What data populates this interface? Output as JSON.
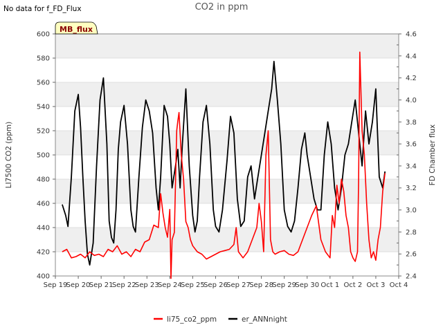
{
  "header": {
    "no_data_note": "No data for f_FD_Flux",
    "title": "CO2 in ppm"
  },
  "badge": {
    "label": "MB_flux",
    "bg": "#ffffc0",
    "text_color": "#8b0000"
  },
  "colors": {
    "band": "#efefef",
    "grid": "#d8d8d8",
    "li75": "#ff0000",
    "ann": "#000000"
  },
  "chart_data": {
    "type": "line",
    "title": "CO2 in ppm",
    "xlabel": "",
    "ylabel": "LI7500 CO2 (ppm)",
    "y2label": "FD Chamber flux",
    "x_start": "Sep 19",
    "x_end": "Oct 4",
    "x_ticks": [
      "Sep 19",
      "Sep 20",
      "Sep 21",
      "Sep 22",
      "Sep 23",
      "Sep 24",
      "Sep 25",
      "Sep 26",
      "Sep 27",
      "Sep 28",
      "Sep 29",
      "Sep 30",
      "Oct 1",
      "Oct 2",
      "Oct 3",
      "Oct 4"
    ],
    "ylim": [
      400,
      600
    ],
    "y_ticks": [
      400,
      420,
      440,
      460,
      480,
      500,
      520,
      540,
      560,
      580,
      600
    ],
    "y2lim": [
      2.4,
      4.6
    ],
    "y2_ticks": [
      "2.4",
      "2.6",
      "2.8",
      "3.0",
      "3.2",
      "3.4",
      "3.6",
      "3.8",
      "4.0",
      "4.2",
      "4.4",
      "4.6"
    ],
    "grid": true,
    "legend_position": "bottom",
    "series": [
      {
        "name": "li75_co2_ppm",
        "color": "#ff0000",
        "axis": "left",
        "x": [
          0.3,
          0.5,
          0.7,
          0.9,
          1.1,
          1.3,
          1.5,
          1.7,
          1.9,
          2.1,
          2.3,
          2.5,
          2.7,
          2.9,
          3.1,
          3.3,
          3.5,
          3.7,
          3.9,
          4.1,
          4.3,
          4.5,
          4.6,
          4.7,
          4.8,
          4.9,
          5.0,
          5.05,
          5.1,
          5.2,
          5.3,
          5.35,
          5.4,
          5.5,
          5.6,
          5.7,
          5.8,
          5.9,
          6.0,
          6.2,
          6.4,
          6.6,
          6.8,
          7.0,
          7.2,
          7.4,
          7.6,
          7.8,
          7.9,
          8.0,
          8.2,
          8.4,
          8.6,
          8.8,
          8.9,
          9.0,
          9.1,
          9.2,
          9.3,
          9.4,
          9.5,
          9.6,
          9.8,
          10.0,
          10.2,
          10.4,
          10.6,
          10.8,
          11.0,
          11.2,
          11.4,
          11.6,
          11.8,
          12.0,
          12.1,
          12.2,
          12.3,
          12.4,
          12.5,
          12.6,
          12.7,
          12.8,
          12.9,
          13.0,
          13.1,
          13.2,
          13.25,
          13.3,
          13.4,
          13.5,
          13.6,
          13.7,
          13.8,
          13.9,
          14.0,
          14.1,
          14.2,
          14.3,
          14.4
        ],
        "y": [
          420,
          422,
          415,
          416,
          418,
          415,
          420,
          417,
          418,
          416,
          422,
          420,
          425,
          418,
          420,
          416,
          422,
          420,
          428,
          430,
          442,
          440,
          468,
          452,
          440,
          432,
          455,
          398,
          430,
          436,
          520,
          528,
          535,
          500,
          480,
          445,
          440,
          430,
          425,
          420,
          418,
          414,
          416,
          418,
          420,
          421,
          422,
          426,
          440,
          420,
          415,
          420,
          430,
          440,
          460,
          445,
          420,
          500,
          520,
          430,
          420,
          418,
          420,
          421,
          418,
          417,
          420,
          430,
          440,
          450,
          458,
          430,
          420,
          415,
          450,
          440,
          475,
          460,
          480,
          470,
          450,
          440,
          420,
          415,
          412,
          420,
          480,
          585,
          520,
          500,
          460,
          430,
          415,
          420,
          413,
          430,
          440,
          470,
          485
        ]
      },
      {
        "name": "er_ANNnight",
        "color": "#000000",
        "axis": "right",
        "x": [
          0.3,
          0.45,
          0.55,
          0.7,
          0.85,
          1.0,
          1.1,
          1.2,
          1.3,
          1.4,
          1.5,
          1.65,
          1.8,
          1.95,
          2.1,
          2.25,
          2.35,
          2.45,
          2.55,
          2.65,
          2.75,
          2.85,
          3.0,
          3.15,
          3.3,
          3.4,
          3.5,
          3.65,
          3.8,
          3.95,
          4.1,
          4.25,
          4.4,
          4.5,
          4.6,
          4.75,
          4.9,
          5.0,
          5.1,
          5.25,
          5.35,
          5.45,
          5.55,
          5.7,
          5.85,
          6.0,
          6.1,
          6.2,
          6.3,
          6.45,
          6.6,
          6.75,
          6.9,
          7.0,
          7.15,
          7.3,
          7.5,
          7.65,
          7.8,
          7.95,
          8.1,
          8.25,
          8.4,
          8.55,
          8.7,
          8.85,
          9.0,
          9.15,
          9.3,
          9.45,
          9.55,
          9.7,
          9.85,
          10.0,
          10.15,
          10.3,
          10.45,
          10.6,
          10.75,
          10.9,
          11.0,
          11.15,
          11.3,
          11.45,
          11.6,
          11.75,
          11.9,
          12.05,
          12.2,
          12.35,
          12.5,
          12.65,
          12.8,
          12.95,
          13.1,
          13.25,
          13.4,
          13.55,
          13.7,
          13.85,
          14.0,
          14.15,
          14.3,
          14.4
        ],
        "y": [
          3.05,
          2.95,
          2.85,
          3.3,
          3.9,
          4.05,
          3.75,
          3.3,
          2.9,
          2.6,
          2.5,
          2.7,
          3.4,
          4.0,
          4.2,
          3.6,
          2.9,
          2.75,
          2.7,
          3.0,
          3.55,
          3.8,
          3.95,
          3.6,
          3.0,
          2.85,
          2.8,
          3.3,
          3.75,
          4.0,
          3.9,
          3.7,
          3.2,
          3.0,
          3.3,
          3.95,
          3.85,
          3.6,
          3.2,
          3.4,
          3.55,
          3.2,
          3.6,
          4.1,
          3.4,
          2.95,
          2.8,
          2.9,
          3.3,
          3.8,
          3.95,
          3.6,
          3.0,
          2.85,
          2.8,
          3.0,
          3.45,
          3.85,
          3.7,
          3.1,
          2.85,
          2.9,
          3.3,
          3.4,
          3.1,
          3.3,
          3.5,
          3.7,
          3.9,
          4.1,
          4.35,
          4.0,
          3.6,
          3.0,
          2.85,
          2.8,
          2.9,
          3.2,
          3.55,
          3.7,
          3.5,
          3.3,
          3.1,
          3.0,
          3.0,
          3.5,
          3.8,
          3.6,
          3.2,
          3.0,
          3.2,
          3.5,
          3.6,
          3.8,
          4.0,
          3.7,
          3.4,
          3.9,
          3.6,
          3.8,
          4.1,
          3.3,
          3.2,
          3.35
        ]
      }
    ]
  }
}
